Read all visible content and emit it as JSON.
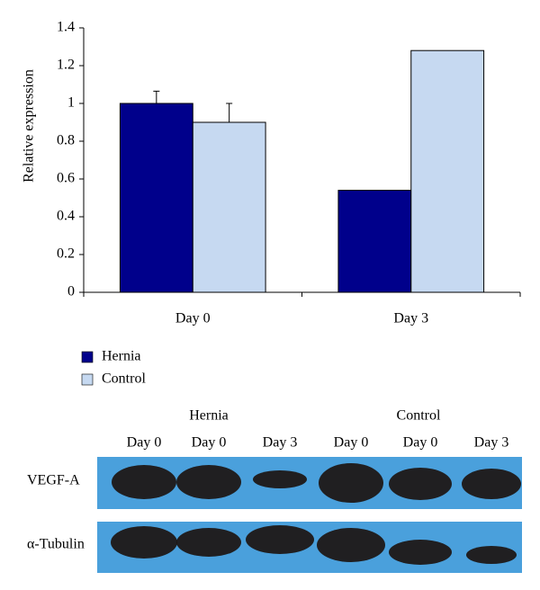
{
  "chart_data": {
    "type": "bar",
    "ylabel": "Relative expression",
    "categories": [
      "Day 0",
      "Day 3"
    ],
    "series": [
      {
        "name": "Hernia",
        "color": "#00008b",
        "values": [
          1.0,
          0.54
        ],
        "errors": [
          0.065,
          null
        ]
      },
      {
        "name": "Control",
        "color": "#c6d9f1",
        "values": [
          0.9,
          1.28
        ],
        "errors": [
          0.1,
          null
        ]
      }
    ],
    "ylim": [
      0,
      1.4
    ],
    "yticks": [
      0,
      0.2,
      0.4,
      0.6,
      0.8,
      1,
      1.2,
      1.4
    ],
    "grid": false,
    "legend": "bottom-left"
  },
  "blot": {
    "groups": [
      "Hernia",
      "Control"
    ],
    "lanes": [
      "Day 0",
      "Day 0",
      "Day 3",
      "Day 0",
      "Day 0",
      "Day 3"
    ],
    "rows": [
      "VEGF-A",
      "α-Tubulin"
    ]
  }
}
